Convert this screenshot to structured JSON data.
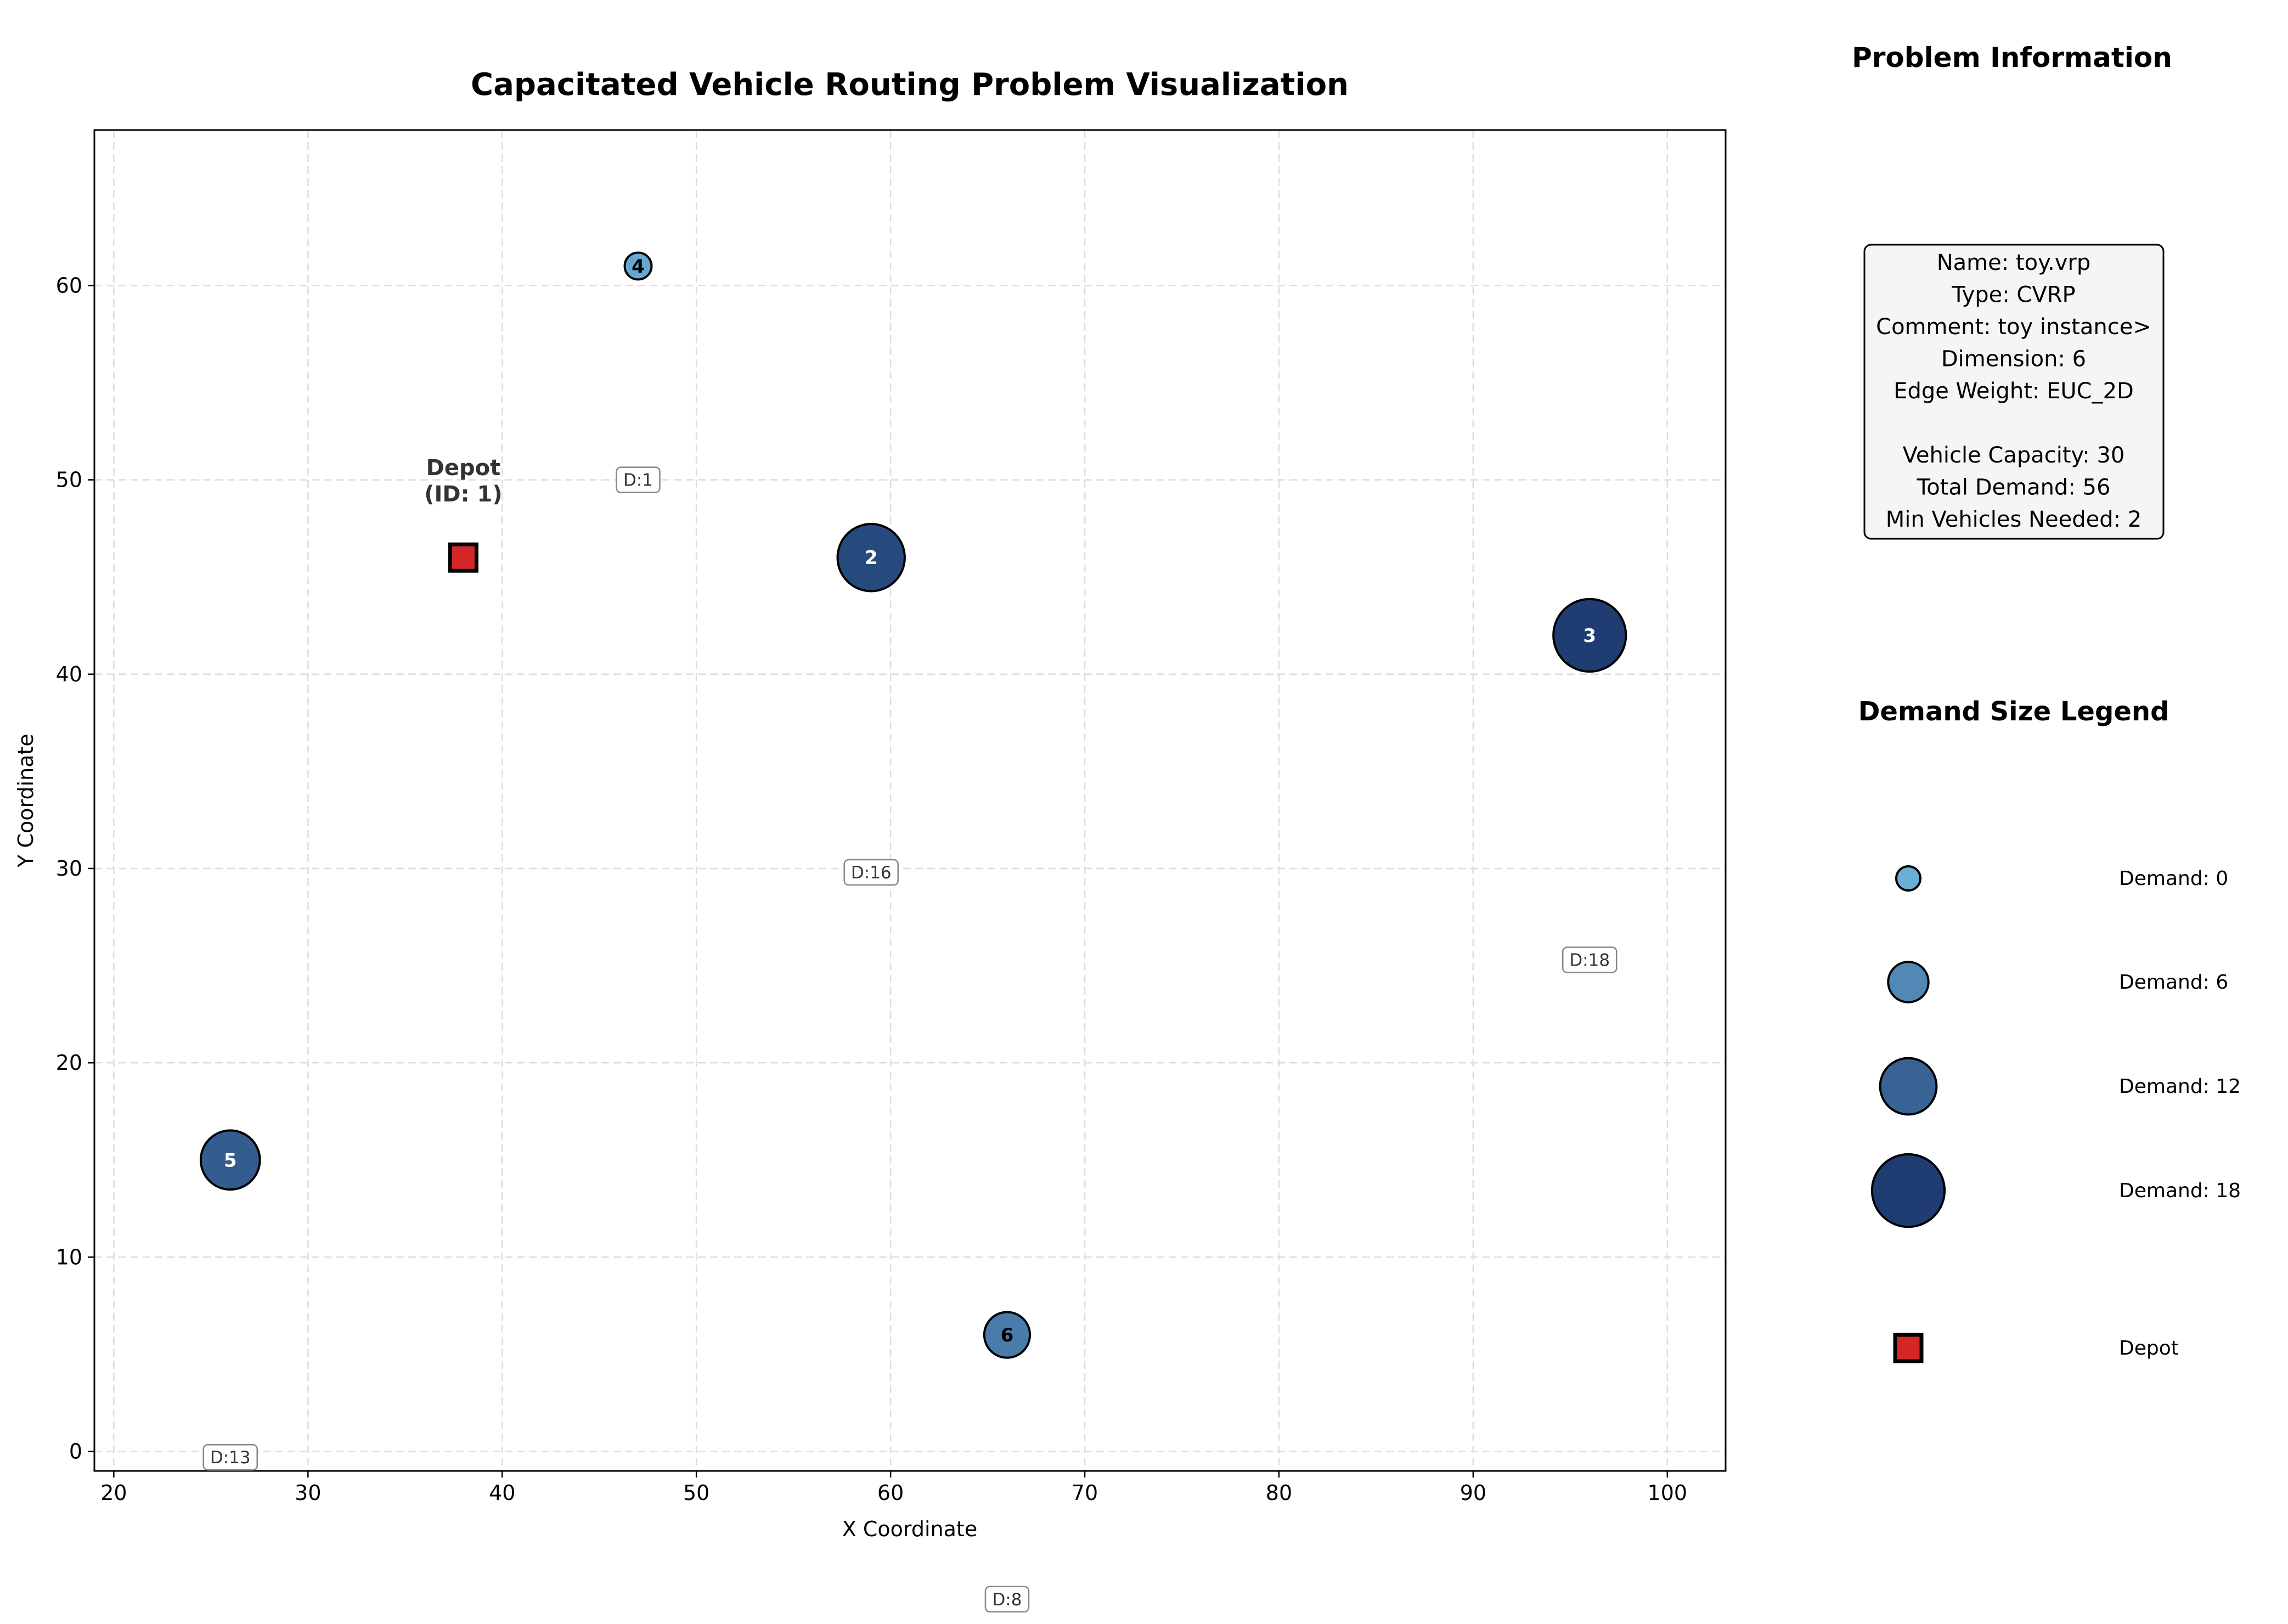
{
  "chart_data": {
    "type": "scatter",
    "title": "Capacitated Vehicle Routing Problem Visualization",
    "xlabel": "X Coordinate",
    "ylabel": "Y Coordinate",
    "xlim": [
      19,
      103
    ],
    "ylim": [
      -1,
      68
    ],
    "xticks": [
      20,
      30,
      40,
      50,
      60,
      70,
      80,
      90,
      100
    ],
    "yticks": [
      0,
      10,
      20,
      30,
      40,
      50,
      60
    ],
    "grid": true,
    "depot": {
      "id": 1,
      "x": 38,
      "y": 46,
      "label": "Depot\n(ID: 1)",
      "color": "#d62728"
    },
    "customers": [
      {
        "id": 2,
        "x": 59,
        "y": 46,
        "demand": 16
      },
      {
        "id": 3,
        "x": 96,
        "y": 42,
        "demand": 18
      },
      {
        "id": 4,
        "x": 47,
        "y": 61,
        "demand": 1
      },
      {
        "id": 5,
        "x": 26,
        "y": 15,
        "demand": 13
      },
      {
        "id": 6,
        "x": 66,
        "y": 6,
        "demand": 8
      }
    ],
    "demand_labels": [
      {
        "text": "D:1",
        "x": 47,
        "y": 50
      },
      {
        "text": "D:16",
        "x": 59,
        "y": 29.8
      },
      {
        "text": "D:18",
        "x": 96,
        "y": 25.3
      },
      {
        "text": "D:13",
        "x": 26,
        "y": -0.3
      },
      {
        "text": "D:8",
        "x": 66,
        "y": -7.6
      }
    ]
  },
  "info_panel": {
    "title": "Problem Information",
    "lines": [
      "Name: toy.vrp",
      "Type: CVRP",
      "Comment: toy instance>",
      "Dimension: 6",
      "Edge Weight: EUC_2D",
      "",
      "Vehicle Capacity: 30",
      "Total Demand: 56",
      "Min Vehicles Needed: 2"
    ]
  },
  "legend": {
    "title": "Demand Size Legend",
    "items": [
      {
        "label": "Demand: 0",
        "demand": 0
      },
      {
        "label": "Demand: 6",
        "demand": 6
      },
      {
        "label": "Demand: 12",
        "demand": 12
      },
      {
        "label": "Demand: 18",
        "demand": 18
      }
    ],
    "depot_label": "Depot"
  },
  "colors": {
    "depot_fill": "#d62728",
    "scale_low": "#6baed6",
    "scale_high": "#1f3d73",
    "grid": "#dddddd",
    "info_box_fill": "#f5f5f5"
  }
}
